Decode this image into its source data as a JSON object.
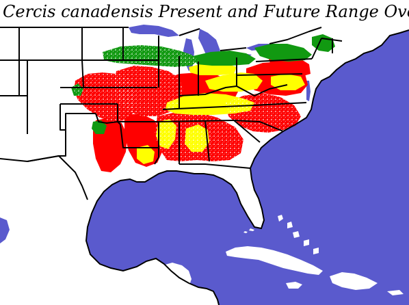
{
  "title": "Cercis canadensis Present and Future Range Overlap",
  "colors": {
    "ocean": "#5a5acd",
    "land": "#ffffff",
    "boundary": "#000000",
    "red": "#ff0000",
    "yellow": "#ffff00",
    "green": "#119911"
  }
}
